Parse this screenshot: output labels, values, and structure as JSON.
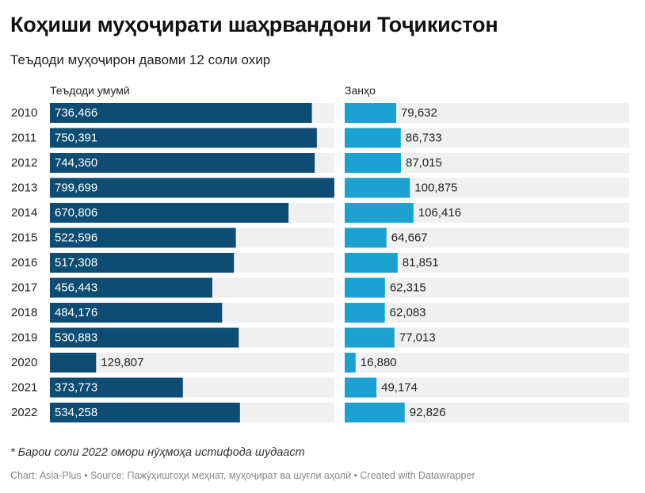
{
  "title": "Коҳиши муҳоҷирати шаҳрвандони Тоҷикистон",
  "subtitle": "Теъдоди муҳоҷирон давоми 12 соли охир",
  "note": "* Барои соли 2022 омори нӯҳмоҳа истифода шудааст",
  "footer": "Chart: Asia-Plus • Source: Пажӯҳишгоҳи меҳнат, муҳоҷират ва шуғли аҳолӣ • Created with Datawrapper",
  "chart_data": {
    "type": "bar",
    "orientation": "horizontal",
    "categories": [
      "2010",
      "2011",
      "2012",
      "2013",
      "2014",
      "2015",
      "2016",
      "2017",
      "2018",
      "2019",
      "2020",
      "2021",
      "2022"
    ],
    "series": [
      {
        "name": "Теъдоди умумӣ",
        "color": "#0d4d74",
        "values": [
          736466,
          750391,
          744360,
          799699,
          670806,
          522596,
          517308,
          456443,
          484176,
          530883,
          129807,
          373773,
          534258
        ],
        "labels": [
          "736,466",
          "750,391",
          "744,360",
          "799,699",
          "670,806",
          "522,596",
          "517,308",
          "456,443",
          "484,176",
          "530,883",
          "129,807",
          "373,773",
          "534,258"
        ],
        "xlim": [
          0,
          799699
        ]
      },
      {
        "name": "Занҳо",
        "color": "#1ba2d0",
        "values": [
          79632,
          86733,
          87015,
          100875,
          106416,
          64667,
          81851,
          62315,
          62083,
          77013,
          16880,
          49174,
          92826
        ],
        "labels": [
          "79,632",
          "86,733",
          "87,015",
          "100,875",
          "106,416",
          "64,667",
          "81,851",
          "62,315",
          "62,083",
          "77,013",
          "16,880",
          "49,174",
          "92,826"
        ],
        "xlim": [
          0,
          440000
        ]
      }
    ],
    "track_color": "#f0f0f0"
  }
}
